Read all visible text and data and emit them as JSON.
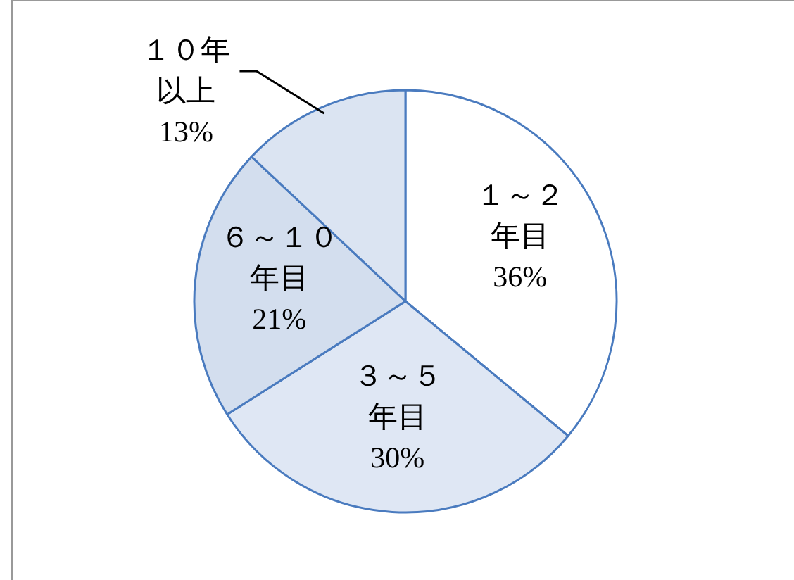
{
  "chart_data": {
    "type": "pie",
    "categories": [
      "１～２年目",
      "３～５年目",
      "６～１０年目",
      "１０年以上"
    ],
    "values": [
      36,
      30,
      21,
      13
    ],
    "colors": [
      "#ffffff",
      "#dfe7f4",
      "#d3deee",
      "#dbe4f2"
    ],
    "value_labels": [
      "36%",
      "30%",
      "21%",
      "13%"
    ]
  }
}
